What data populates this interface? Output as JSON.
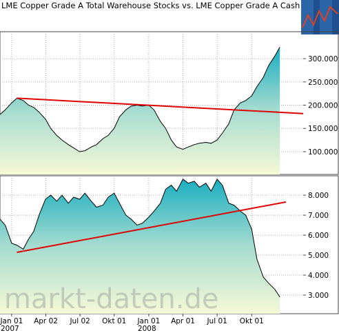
{
  "chart_data": [
    {
      "type": "area",
      "title": "LME Copper Grade A Total Warehouse Stocks vs. LME Copper Grade A Cash Seller Price",
      "x": [
        "2006-12-01",
        "2006-12-15",
        "2007-01-01",
        "2007-01-15",
        "2007-02-01",
        "2007-02-15",
        "2007-03-01",
        "2007-03-15",
        "2007-04-01",
        "2007-04-15",
        "2007-05-01",
        "2007-05-15",
        "2007-06-01",
        "2007-06-15",
        "2007-07-01",
        "2007-07-15",
        "2007-08-01",
        "2007-08-15",
        "2007-09-01",
        "2007-09-15",
        "2007-10-01",
        "2007-10-15",
        "2007-11-01",
        "2007-11-15",
        "2007-12-01",
        "2007-12-15",
        "2008-01-01",
        "2008-01-15",
        "2008-02-01",
        "2008-02-15",
        "2008-03-01",
        "2008-03-15",
        "2008-04-01",
        "2008-04-15",
        "2008-05-01",
        "2008-05-15",
        "2008-06-01",
        "2008-06-15",
        "2008-07-01",
        "2008-07-15",
        "2008-08-01",
        "2008-08-15",
        "2008-09-01",
        "2008-09-15",
        "2008-10-01",
        "2008-10-15",
        "2008-11-01",
        "2008-11-15",
        "2008-12-01",
        "2008-12-15"
      ],
      "values": [
        180000,
        190000,
        205000,
        215000,
        210000,
        200000,
        195000,
        185000,
        170000,
        150000,
        135000,
        125000,
        115000,
        108000,
        100000,
        102000,
        110000,
        115000,
        128000,
        135000,
        150000,
        175000,
        190000,
        198000,
        200000,
        198000,
        200000,
        190000,
        165000,
        150000,
        125000,
        110000,
        105000,
        110000,
        115000,
        118000,
        120000,
        118000,
        125000,
        140000,
        160000,
        190000,
        205000,
        210000,
        220000,
        240000,
        260000,
        285000,
        305000,
        325000
      ],
      "color": "#1aaec0",
      "trend": {
        "x": [
          "2007-01-15",
          "2009-02-15"
        ],
        "values": [
          215000,
          182000
        ],
        "color": "#e00000"
      },
      "xlim": [
        "2006-12-01",
        "2009-02-15"
      ],
      "ylim": [
        51000,
        358000
      ],
      "yticks": [
        {
          "value": 100000,
          "label": "100.000"
        },
        {
          "value": 150000,
          "label": "150.000"
        },
        {
          "value": 200000,
          "label": "200.000"
        },
        {
          "value": 250000,
          "label": "250.000"
        },
        {
          "value": 300000,
          "label": "300.000"
        }
      ],
      "grid": true
    },
    {
      "type": "area",
      "x": [
        "2006-12-01",
        "2006-12-15",
        "2007-01-01",
        "2007-01-15",
        "2007-02-01",
        "2007-02-15",
        "2007-03-01",
        "2007-03-15",
        "2007-04-01",
        "2007-04-15",
        "2007-05-01",
        "2007-05-15",
        "2007-06-01",
        "2007-06-15",
        "2007-07-01",
        "2007-07-15",
        "2007-08-01",
        "2007-08-15",
        "2007-09-01",
        "2007-09-15",
        "2007-10-01",
        "2007-10-15",
        "2007-11-01",
        "2007-11-15",
        "2007-12-01",
        "2007-12-15",
        "2008-01-01",
        "2008-01-15",
        "2008-02-01",
        "2008-02-15",
        "2008-03-01",
        "2008-03-15",
        "2008-04-01",
        "2008-04-15",
        "2008-05-01",
        "2008-05-15",
        "2008-06-01",
        "2008-06-15",
        "2008-07-01",
        "2008-07-15",
        "2008-08-01",
        "2008-08-15",
        "2008-09-01",
        "2008-09-15",
        "2008-10-01",
        "2008-10-15",
        "2008-11-01",
        "2008-11-15",
        "2008-12-01",
        "2008-12-15"
      ],
      "values": [
        6.8,
        6.5,
        5.6,
        5.5,
        5.3,
        5.8,
        6.2,
        7.0,
        7.8,
        8.0,
        7.7,
        8.0,
        7.6,
        7.9,
        7.8,
        8.1,
        7.7,
        7.4,
        7.5,
        7.9,
        8.1,
        7.6,
        7.0,
        6.8,
        6.5,
        6.6,
        6.9,
        7.2,
        7.6,
        8.3,
        8.5,
        8.2,
        8.8,
        8.6,
        8.7,
        8.4,
        8.6,
        8.2,
        8.8,
        8.5,
        7.6,
        7.5,
        7.2,
        7.0,
        6.3,
        4.8,
        3.9,
        3.6,
        3.3,
        2.9
      ],
      "color": "#1aaec0",
      "trend": {
        "x": [
          "2007-01-15",
          "2008-12-31"
        ],
        "values": [
          5.14,
          7.66
        ],
        "color": "#e00000"
      },
      "xlim": [
        "2006-12-01",
        "2009-02-15"
      ],
      "ylim": [
        2.07,
        8.97
      ],
      "yticks": [
        {
          "value": 3,
          "label": "3.000"
        },
        {
          "value": 4,
          "label": "4.000"
        },
        {
          "value": 5,
          "label": "5.000"
        },
        {
          "value": 6,
          "label": "6.000"
        },
        {
          "value": 7,
          "label": "7.000"
        },
        {
          "value": 8,
          "label": "8.000"
        }
      ],
      "grid": true,
      "xticks": [
        {
          "value": "2007-01-01",
          "label": "Jan 01"
        },
        {
          "value": "2007-04-02",
          "label": "Apr 02"
        },
        {
          "value": "2007-07-02",
          "label": "Jul 02"
        },
        {
          "value": "2007-10-01",
          "label": "Okt 01"
        },
        {
          "value": "2008-01-01",
          "label": "Jan 01"
        },
        {
          "value": "2008-04-01",
          "label": "Apr 01"
        },
        {
          "value": "2008-07-01",
          "label": "Jul 01"
        },
        {
          "value": "2008-10-01",
          "label": "Okt 01"
        }
      ],
      "xtick_years": [
        {
          "value": "2007-01-01",
          "label": "2007"
        },
        {
          "value": "2008-01-01",
          "label": "2008"
        }
      ],
      "watermark": "markt-daten.de"
    }
  ]
}
